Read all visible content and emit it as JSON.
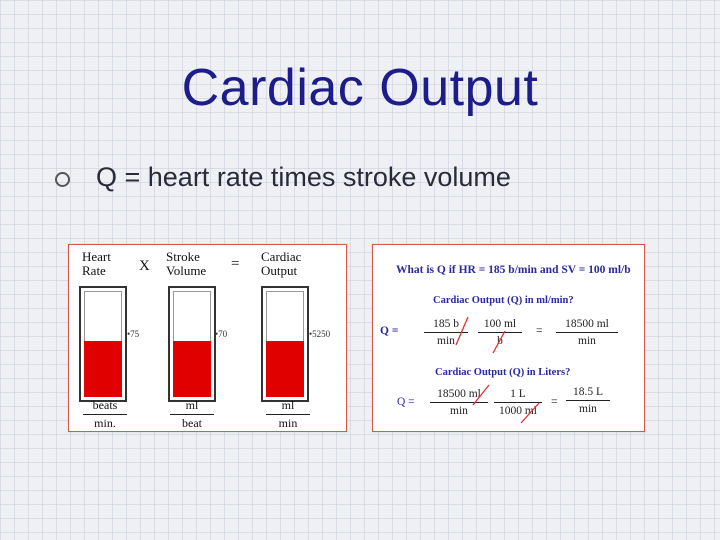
{
  "slide": {
    "title": "Cardiac Output",
    "bullet": "Q = heart rate times stroke volume"
  },
  "diagram": {
    "headers": [
      {
        "line1": "Heart",
        "line2": "Rate"
      },
      {
        "line1": "Stroke",
        "line2": "Volume"
      },
      {
        "line1": "Cardiac",
        "line2": "Output"
      }
    ],
    "operators": {
      "times": "X",
      "equals": "="
    },
    "values": [
      "75",
      "70",
      "5250"
    ],
    "fill_fraction": 0.5,
    "units": [
      {
        "num": "beats",
        "den": "min."
      },
      {
        "num": "ml",
        "den": "beat"
      },
      {
        "num": "ml",
        "den": "min"
      }
    ],
    "colors": {
      "fill": "#e00000"
    }
  },
  "example": {
    "question": "What is Q if HR = 185 b/min and SV = 100 ml/b",
    "sub1": "Cardiac Output (Q) in ml/min?",
    "sub2": "Cardiac Output (Q) in Liters?",
    "q_label_bold": "Q =",
    "q_label": "Q =",
    "eq1": {
      "f1": {
        "num": "185 b",
        "den": "min"
      },
      "f2": {
        "num": "100 ml",
        "den": "b"
      },
      "eq": "=",
      "f3": {
        "num": "18500 ml",
        "den": "min"
      }
    },
    "eq2": {
      "f1": {
        "num": "18500 ml",
        "den": "min"
      },
      "f2": {
        "num": "1 L",
        "den": "1000 ml"
      },
      "eq": "=",
      "f3": {
        "num": "18.5 L",
        "den": "min"
      }
    },
    "colors": {
      "text": "#2a2a9a",
      "cancel": "#e03030"
    }
  }
}
